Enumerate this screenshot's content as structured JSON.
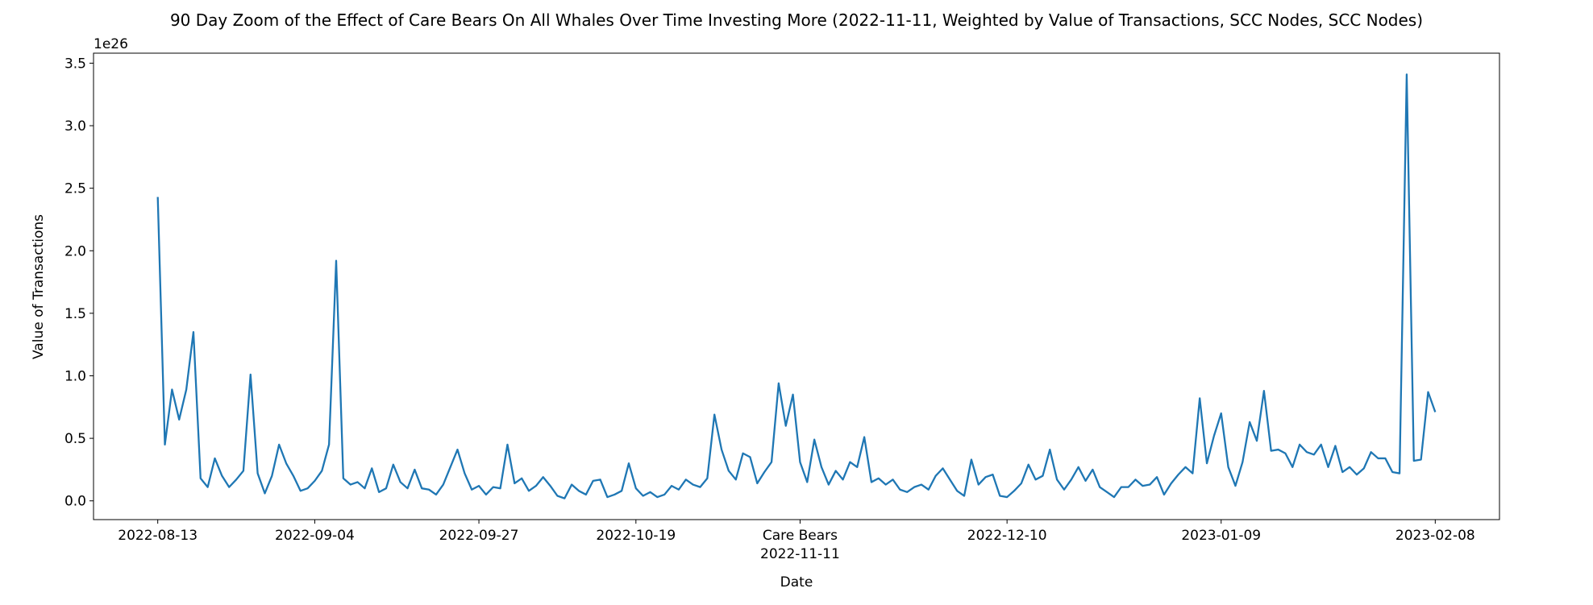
{
  "chart_data": {
    "type": "line",
    "title": "90 Day Zoom of the Effect of Care Bears On All Whales Over Time Investing More (2022-11-11, Weighted by Value of Transactions, SCC Nodes, SCC Nodes)",
    "xlabel": "Date",
    "ylabel": "Value of Transactions",
    "y_offset_label": "1e26",
    "x": [
      "2022-08-13",
      "2022-08-14",
      "2022-08-15",
      "2022-08-16",
      "2022-08-17",
      "2022-08-18",
      "2022-08-19",
      "2022-08-20",
      "2022-08-21",
      "2022-08-22",
      "2022-08-23",
      "2022-08-24",
      "2022-08-25",
      "2022-08-26",
      "2022-08-27",
      "2022-08-28",
      "2022-08-29",
      "2022-08-30",
      "2022-08-31",
      "2022-09-01",
      "2022-09-02",
      "2022-09-03",
      "2022-09-04",
      "2022-09-05",
      "2022-09-06",
      "2022-09-07",
      "2022-09-08",
      "2022-09-09",
      "2022-09-10",
      "2022-09-11",
      "2022-09-12",
      "2022-09-13",
      "2022-09-14",
      "2022-09-15",
      "2022-09-16",
      "2022-09-17",
      "2022-09-18",
      "2022-09-19",
      "2022-09-20",
      "2022-09-21",
      "2022-09-22",
      "2022-09-23",
      "2022-09-24",
      "2022-09-25",
      "2022-09-26",
      "2022-09-27",
      "2022-09-28",
      "2022-09-29",
      "2022-09-30",
      "2022-10-01",
      "2022-10-02",
      "2022-10-03",
      "2022-10-04",
      "2022-10-05",
      "2022-10-06",
      "2022-10-07",
      "2022-10-08",
      "2022-10-09",
      "2022-10-10",
      "2022-10-11",
      "2022-10-12",
      "2022-10-13",
      "2022-10-14",
      "2022-10-15",
      "2022-10-16",
      "2022-10-17",
      "2022-10-18",
      "2022-10-19",
      "2022-10-20",
      "2022-10-21",
      "2022-10-22",
      "2022-10-23",
      "2022-10-24",
      "2022-10-25",
      "2022-10-26",
      "2022-10-27",
      "2022-10-28",
      "2022-10-29",
      "2022-10-30",
      "2022-10-31",
      "2022-11-01",
      "2022-11-02",
      "2022-11-03",
      "2022-11-04",
      "2022-11-05",
      "2022-11-06",
      "2022-11-07",
      "2022-11-08",
      "2022-11-09",
      "2022-11-10",
      "2022-11-11",
      "2022-11-12",
      "2022-11-13",
      "2022-11-14",
      "2022-11-15",
      "2022-11-16",
      "2022-11-17",
      "2022-11-18",
      "2022-11-19",
      "2022-11-20",
      "2022-11-21",
      "2022-11-22",
      "2022-11-23",
      "2022-11-24",
      "2022-11-25",
      "2022-11-26",
      "2022-11-27",
      "2022-11-28",
      "2022-11-29",
      "2022-11-30",
      "2022-12-01",
      "2022-12-02",
      "2022-12-03",
      "2022-12-04",
      "2022-12-05",
      "2022-12-06",
      "2022-12-07",
      "2022-12-08",
      "2022-12-09",
      "2022-12-10",
      "2022-12-11",
      "2022-12-12",
      "2022-12-13",
      "2022-12-14",
      "2022-12-15",
      "2022-12-16",
      "2022-12-17",
      "2022-12-18",
      "2022-12-19",
      "2022-12-20",
      "2022-12-21",
      "2022-12-22",
      "2022-12-23",
      "2022-12-24",
      "2022-12-25",
      "2022-12-26",
      "2022-12-27",
      "2022-12-28",
      "2022-12-29",
      "2022-12-30",
      "2022-12-31",
      "2023-01-01",
      "2023-01-02",
      "2023-01-03",
      "2023-01-04",
      "2023-01-05",
      "2023-01-06",
      "2023-01-07",
      "2023-01-08",
      "2023-01-09",
      "2023-01-10",
      "2023-01-11",
      "2023-01-12",
      "2023-01-13",
      "2023-01-14",
      "2023-01-15",
      "2023-01-16",
      "2023-01-17",
      "2023-01-18",
      "2023-01-19",
      "2023-01-20",
      "2023-01-21",
      "2023-01-22",
      "2023-01-23",
      "2023-01-24",
      "2023-01-25",
      "2023-01-26",
      "2023-01-27",
      "2023-01-28",
      "2023-01-29",
      "2023-01-30",
      "2023-01-31",
      "2023-02-01",
      "2023-02-02",
      "2023-02-03",
      "2023-02-04",
      "2023-02-05",
      "2023-02-06",
      "2023-02-07",
      "2023-02-08"
    ],
    "series": [
      {
        "name": "Value of Transactions",
        "color": "#1f77b4",
        "values": [
          2.43,
          0.45,
          0.89,
          0.65,
          0.89,
          1.35,
          0.18,
          0.11,
          0.34,
          0.2,
          0.11,
          0.17,
          0.24,
          1.01,
          0.22,
          0.06,
          0.2,
          0.45,
          0.3,
          0.2,
          0.08,
          0.1,
          0.16,
          0.24,
          0.45,
          1.92,
          0.18,
          0.13,
          0.15,
          0.1,
          0.26,
          0.07,
          0.1,
          0.29,
          0.15,
          0.1,
          0.25,
          0.1,
          0.09,
          0.05,
          0.13,
          0.27,
          0.41,
          0.22,
          0.09,
          0.12,
          0.05,
          0.11,
          0.1,
          0.45,
          0.14,
          0.18,
          0.08,
          0.12,
          0.19,
          0.12,
          0.04,
          0.02,
          0.13,
          0.08,
          0.05,
          0.16,
          0.17,
          0.03,
          0.05,
          0.08,
          0.3,
          0.1,
          0.04,
          0.07,
          0.03,
          0.05,
          0.12,
          0.09,
          0.17,
          0.13,
          0.11,
          0.18,
          0.69,
          0.41,
          0.24,
          0.17,
          0.38,
          0.35,
          0.14,
          0.23,
          0.31,
          0.94,
          0.6,
          0.85,
          0.31,
          0.15,
          0.49,
          0.27,
          0.13,
          0.24,
          0.17,
          0.31,
          0.27,
          0.51,
          0.15,
          0.18,
          0.13,
          0.17,
          0.09,
          0.07,
          0.11,
          0.13,
          0.09,
          0.2,
          0.26,
          0.17,
          0.08,
          0.04,
          0.33,
          0.13,
          0.19,
          0.21,
          0.04,
          0.03,
          0.08,
          0.14,
          0.29,
          0.17,
          0.2,
          0.41,
          0.17,
          0.09,
          0.17,
          0.27,
          0.16,
          0.25,
          0.11,
          0.07,
          0.03,
          0.11,
          0.11,
          0.17,
          0.12,
          0.13,
          0.19,
          0.05,
          0.14,
          0.21,
          0.27,
          0.22,
          0.82,
          0.3,
          0.52,
          0.7,
          0.27,
          0.12,
          0.31,
          0.63,
          0.48,
          0.88,
          0.4,
          0.41,
          0.38,
          0.27,
          0.45,
          0.39,
          0.37,
          0.45,
          0.27,
          0.44,
          0.23,
          0.27,
          0.21,
          0.26,
          0.39,
          0.34,
          0.34,
          0.23,
          0.22,
          3.41,
          0.32,
          0.33,
          0.87,
          0.71
        ]
      }
    ],
    "xlim": [
      "2022-08-04",
      "2023-02-17"
    ],
    "xticks": [
      "2022-08-13",
      "2022-09-04",
      "2022-09-27",
      "2022-10-19",
      {
        "value": "2022-11-11",
        "label": [
          "Care Bears",
          "2022-11-11"
        ]
      },
      "2022-12-10",
      "2023-01-09",
      "2023-02-08"
    ],
    "ylim": [
      -0.15,
      3.58
    ],
    "yticks": [
      {
        "value": 0,
        "label": "0.0"
      },
      0.5,
      {
        "value": 1,
        "label": "1.0"
      },
      1.5,
      {
        "value": 2,
        "label": "2.0"
      },
      2.5,
      {
        "value": 3,
        "label": "3.0"
      },
      3.5
    ]
  }
}
